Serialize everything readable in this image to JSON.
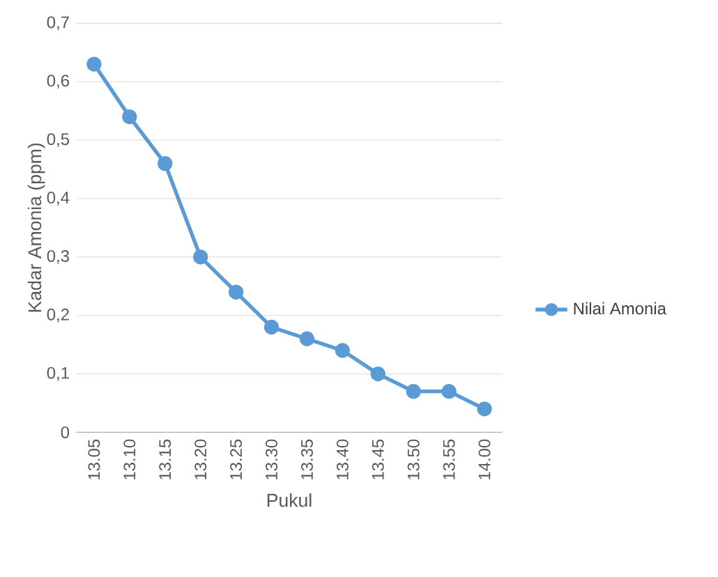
{
  "chart_data": {
    "type": "line",
    "xlabel": "Pukul",
    "ylabel": "Kadar Amonia (ppm)",
    "categories": [
      "13.05",
      "13.10",
      "13.15",
      "13.20",
      "13.25",
      "13.30",
      "13.35",
      "13.40",
      "13.45",
      "13.50",
      "13.55",
      "14.00"
    ],
    "series": [
      {
        "name": "Nilai Amonia",
        "color": "#5b9bd5",
        "values": [
          0.63,
          0.54,
          0.46,
          0.3,
          0.24,
          0.18,
          0.16,
          0.14,
          0.1,
          0.07,
          0.07,
          0.04
        ]
      }
    ],
    "ylim": [
      0,
      0.7
    ],
    "yticks": [
      0,
      {
        "value": 0.1,
        "label": "0,1"
      },
      {
        "value": 0.2,
        "label": "0,2"
      },
      {
        "value": 0.3,
        "label": "0,3"
      },
      {
        "value": 0.4,
        "label": "0,4"
      },
      {
        "value": 0.5,
        "label": "0,5"
      },
      {
        "value": 0.6,
        "label": "0,6"
      },
      {
        "value": 0.7,
        "label": "0,7"
      }
    ],
    "grid": "y",
    "legend": "right",
    "marker": "circle",
    "line_style": "solid"
  }
}
